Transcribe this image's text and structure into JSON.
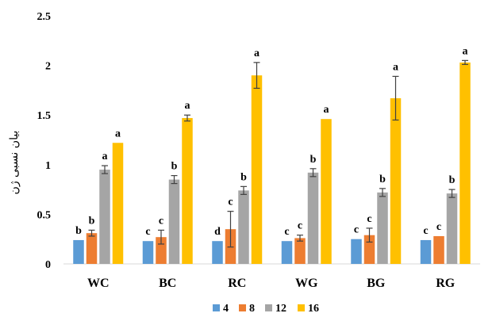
{
  "chart_data": {
    "type": "bar",
    "title": "",
    "xlabel": "",
    "ylabel": "بیان نسبی ژن",
    "ylim": [
      0,
      2.5
    ],
    "yticks": [
      "0",
      "0.5",
      "1",
      "1.5",
      "2",
      "2.5"
    ],
    "grid": false,
    "legend_position": "bottom",
    "categories": [
      "WC",
      "BC",
      "RC",
      "WG",
      "BG",
      "RG"
    ],
    "series": [
      {
        "name": "4",
        "color": "#5B9BD5",
        "values": [
          0.24,
          0.23,
          0.23,
          0.23,
          0.25,
          0.24
        ],
        "errors": [
          0,
          0,
          0,
          0,
          0,
          0
        ],
        "letters": [
          "b",
          "c",
          "d",
          "c",
          "c",
          "c"
        ]
      },
      {
        "name": "8",
        "color": "#ED7D31",
        "values": [
          0.31,
          0.27,
          0.35,
          0.26,
          0.29,
          0.28
        ],
        "errors": [
          0.03,
          0.07,
          0.18,
          0.03,
          0.07,
          0.0
        ],
        "letters": [
          "b",
          "c",
          "c",
          "c",
          "c",
          "c"
        ]
      },
      {
        "name": "12",
        "color": "#A5A5A5",
        "values": [
          0.95,
          0.85,
          0.74,
          0.92,
          0.72,
          0.71
        ],
        "errors": [
          0.04,
          0.04,
          0.04,
          0.04,
          0.04,
          0.04
        ],
        "letters": [
          "a",
          "b",
          "b",
          "b",
          "b",
          "b"
        ]
      },
      {
        "name": "16",
        "color": "#FFC000",
        "values": [
          1.22,
          1.47,
          1.9,
          1.46,
          1.67,
          2.03
        ],
        "errors": [
          0.0,
          0.03,
          0.13,
          0.0,
          0.22,
          0.02
        ],
        "letters": [
          "a",
          "a",
          "a",
          "a",
          "a",
          "a"
        ]
      }
    ]
  }
}
